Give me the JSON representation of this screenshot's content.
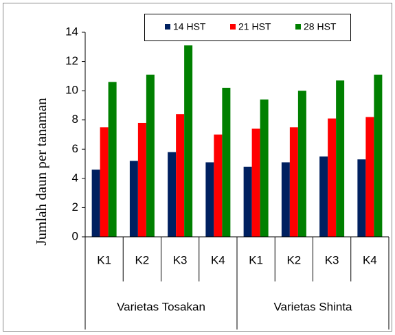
{
  "chart_data": {
    "type": "bar",
    "y_label": "Jumlah daun per tanaman",
    "categories": [
      "K1",
      "K2",
      "K3",
      "K4",
      "K1",
      "K2",
      "K3",
      "K4"
    ],
    "groups": [
      "Varietas Tosakan",
      "Varietas Shinta"
    ],
    "series": [
      {
        "name": "14 HST",
        "color": "#002060",
        "values": [
          4.6,
          5.2,
          5.8,
          5.1,
          4.8,
          5.1,
          5.5,
          5.3
        ]
      },
      {
        "name": "21 HST",
        "color": "#ff0000",
        "values": [
          7.5,
          7.8,
          8.4,
          7.0,
          7.4,
          7.5,
          8.1,
          8.2
        ]
      },
      {
        "name": "28 HST",
        "color": "#008000",
        "values": [
          10.6,
          11.1,
          13.1,
          10.2,
          9.4,
          10.0,
          10.7,
          11.1
        ]
      }
    ],
    "ylim": [
      0,
      14
    ],
    "yticks": [
      0,
      2,
      4,
      6,
      8,
      10,
      12,
      14
    ]
  }
}
